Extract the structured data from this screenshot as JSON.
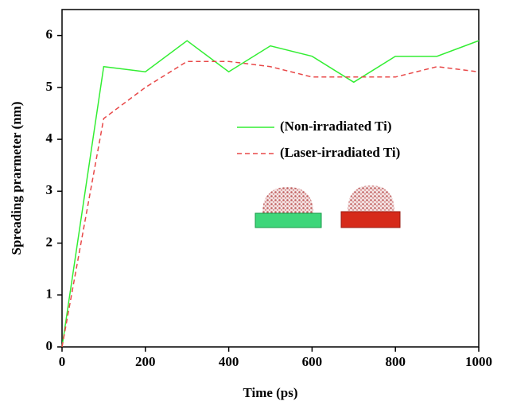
{
  "chart_data": {
    "type": "line",
    "x_label": "Time (ps)",
    "y_label": "Spreading prarmeter (nm)",
    "x": [
      0,
      100,
      200,
      300,
      400,
      500,
      600,
      700,
      800,
      900,
      1000
    ],
    "series": [
      {
        "name": "(Non-irradiated Ti)",
        "color": "#33ee33",
        "dash": "solid",
        "values": [
          0,
          5.4,
          5.3,
          5.9,
          5.3,
          5.8,
          5.6,
          5.1,
          5.6,
          5.6,
          5.9
        ]
      },
      {
        "name": "(Laser-irradiated Ti)",
        "color": "#e84848",
        "dash": "dashed",
        "values": [
          0,
          4.4,
          5.0,
          5.5,
          5.5,
          5.4,
          5.2,
          5.2,
          5.2,
          5.4,
          5.3
        ]
      }
    ],
    "xlim": [
      0,
      1000
    ],
    "xticks": [
      0,
      200,
      400,
      600,
      800,
      1000
    ],
    "ylim": [
      0,
      6.5
    ],
    "yticks": [
      0,
      1,
      2,
      3,
      4,
      5,
      6
    ],
    "grid": false
  }
}
